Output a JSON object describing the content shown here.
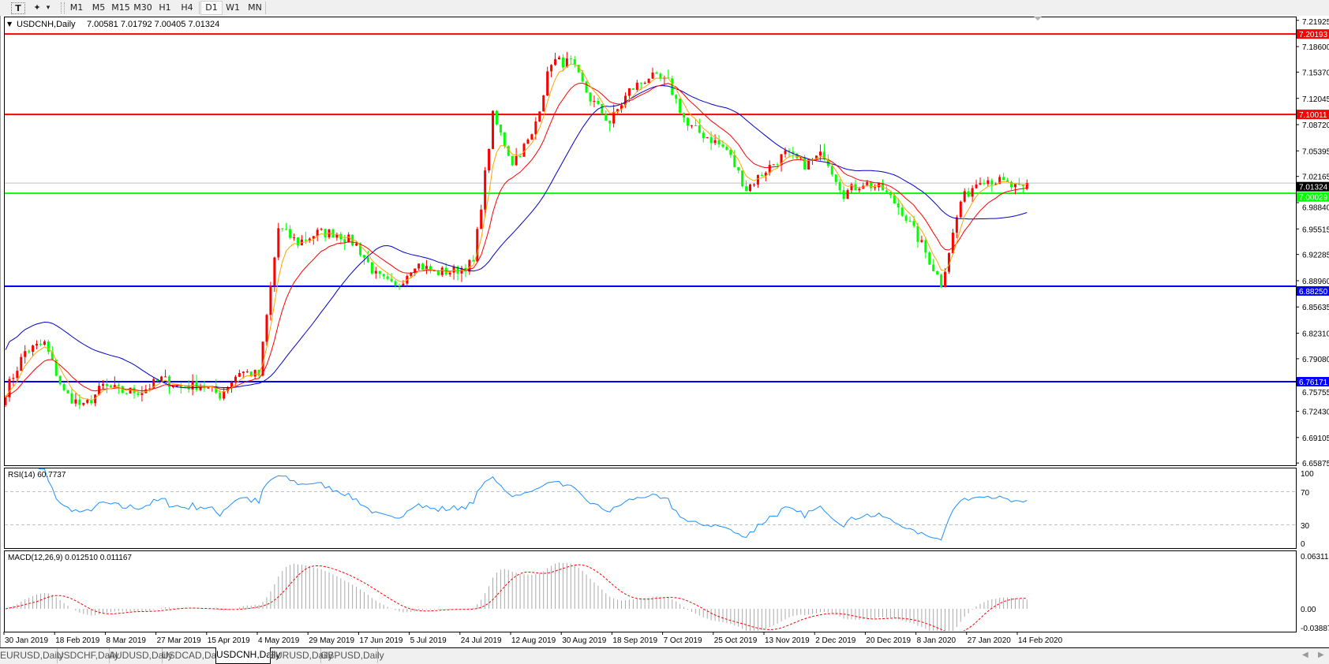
{
  "toolbar": {
    "tools": [
      {
        "name": "text-tool",
        "glyph": "T"
      },
      {
        "name": "line-tools",
        "glyph": "✦"
      }
    ],
    "dropdown_glyph": "▾",
    "timeframes": [
      "M1",
      "M5",
      "M15",
      "M30",
      "H1",
      "H4",
      "D1",
      "W1",
      "MN"
    ],
    "active_timeframe": "D1"
  },
  "chart": {
    "symbol_label": "USDCNH,Daily",
    "ohlc_label": "7.00581 7.01792 7.00405 7.01324",
    "current_price": "7.01324",
    "price_ticks": [
      "7.21925",
      "7.18600",
      "7.15370",
      "7.12045",
      "7.08720",
      "7.05395",
      "7.02165",
      "6.98840",
      "6.95515",
      "6.92285",
      "6.88960",
      "6.85635",
      "6.82310",
      "6.79080",
      "6.75755",
      "6.72430",
      "6.69105",
      "6.65875"
    ],
    "levels": [
      {
        "value": "7.20193",
        "color": "#ff0000"
      },
      {
        "value": "7.10011",
        "color": "#ff0000"
      },
      {
        "value": "7.00029",
        "color": "#00ff00"
      },
      {
        "value": "6.88250",
        "color": "#0000ff"
      },
      {
        "value": "6.76171",
        "color": "#0000ff"
      }
    ],
    "bull_color": "#ff0000",
    "bear_color": "#00ff00",
    "ma_colors": {
      "fast": "#ffa500",
      "medium": "#ff0000",
      "slow": "#0000c8"
    }
  },
  "rsi": {
    "label": "RSI(14) 60.7737",
    "ticks": [
      "100",
      "70",
      "30",
      "0"
    ],
    "color": "#1e90ff"
  },
  "macd": {
    "label": "MACD(12,26,9) 0.012510 0.011167",
    "ticks": [
      "0.063113",
      "0.00",
      "-0.038872"
    ],
    "hist_color": "#a9a9a9",
    "signal_color": "#ff0000"
  },
  "date_labels": [
    "30 Jan 2019",
    "18 Feb 2019",
    "8 Mar 2019",
    "27 Mar 2019",
    "15 Apr 2019",
    "4 May 2019",
    "29 May 2019",
    "17 Jun 2019",
    "5 Jul 2019",
    "24 Jul 2019",
    "12 Aug 2019",
    "30 Aug 2019",
    "18 Sep 2019",
    "7 Oct 2019",
    "25 Oct 2019",
    "13 Nov 2019",
    "2 Dec 2019",
    "20 Dec 2019",
    "8 Jan 2020",
    "27 Jan 2020",
    "14 Feb 2020"
  ],
  "tabs": [
    "EURUSD,Daily",
    "USDCHF,Daily",
    "AUDUSD,Daily",
    "USDCAD,Daily",
    "USDCNH,Daily",
    "EURUSD,Daily",
    "GBPUSD,Daily"
  ],
  "active_tab": "USDCNH,Daily",
  "chart_data": {
    "type": "candlestick",
    "symbol": "USDCNH",
    "timeframe": "Daily",
    "weekly_close": [
      6.749,
      6.8,
      6.81,
      6.748,
      6.729,
      6.756,
      6.749,
      6.75,
      6.765,
      6.755,
      6.758,
      6.745,
      6.775,
      6.77,
      6.956,
      6.938,
      6.95,
      6.95,
      6.935,
      6.896,
      6.88,
      6.912,
      6.9,
      6.902,
      6.912,
      7.098,
      7.04,
      7.072,
      7.168,
      7.165,
      7.12,
      7.09,
      7.13,
      7.148,
      7.14,
      7.085,
      7.072,
      7.055,
      7.006,
      7.03,
      7.05,
      7.037,
      7.05,
      7.0,
      7.014,
      7.005,
      6.978,
      6.935,
      6.886,
      6.99,
      7.02,
      7.015,
      7.005
    ],
    "last_bar": {
      "open": 7.00581,
      "high": 7.01792,
      "low": 7.00405,
      "close": 7.01324
    },
    "ylim": [
      6.65875,
      7.21925
    ],
    "indicators": [
      "RSI(14)",
      "MACD(12,26,9)"
    ]
  }
}
